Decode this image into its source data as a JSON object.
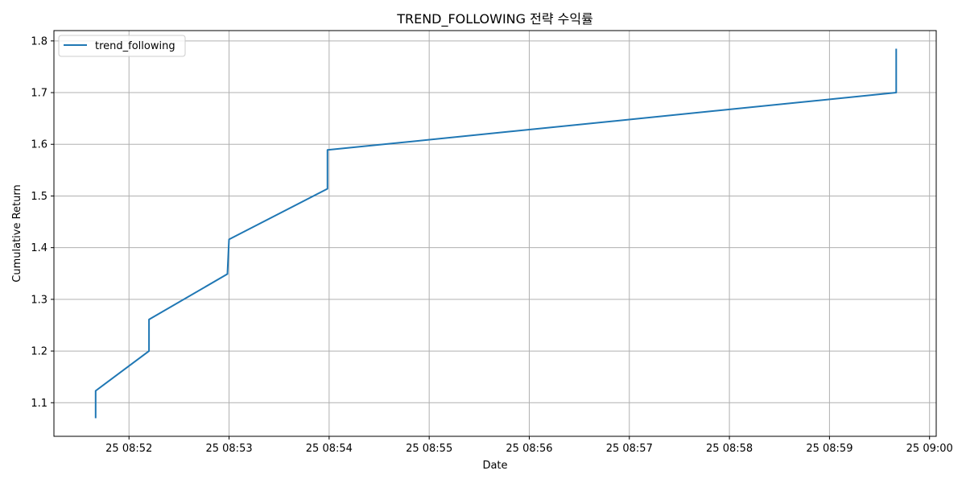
{
  "chart_data": {
    "type": "line",
    "title": "TREND_FOLLOWING 전략 수익률",
    "xlabel": "Date",
    "ylabel": "Cumulative Return",
    "x_tick_labels": [
      "25 08:52",
      "25 08:53",
      "25 08:54",
      "25 08:55",
      "25 08:56",
      "25 08:57",
      "25 08:58",
      "25 08:59",
      "25 09:00"
    ],
    "x_ticks": [
      "08:52",
      "08:53",
      "08:54",
      "08:55",
      "08:56",
      "08:57",
      "08:58",
      "08:59",
      "09:00"
    ],
    "y_ticks": [
      1.1,
      1.2,
      1.3,
      1.4,
      1.5,
      1.6,
      1.7,
      1.8
    ],
    "xlim": [
      "08:51:15",
      "09:00:04"
    ],
    "ylim": [
      1.035,
      1.82
    ],
    "grid": true,
    "legend_position": "top-left",
    "series": [
      {
        "name": "trend_following",
        "color": "#1f77b4",
        "x": [
          "08:51:40",
          "08:51:40",
          "08:52:12",
          "08:52:12",
          "08:52:59",
          "08:53:00",
          "08:53:59",
          "08:53:59",
          "08:59:40",
          "08:59:40"
        ],
        "values": [
          1.07,
          1.123,
          1.2,
          1.261,
          1.349,
          1.416,
          1.514,
          1.589,
          1.7,
          1.785
        ]
      }
    ]
  }
}
